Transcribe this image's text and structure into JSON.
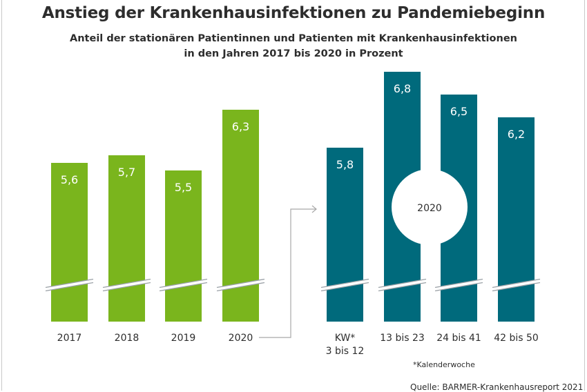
{
  "title": "Anstieg der Krankenhausinfektionen zu Pandemiebeginn",
  "subtitle_line1": "Anteil der stationären Patientinnen und Patienten mit Krankenhausinfektionen",
  "subtitle_line2": "in den Jahren 2017 bis 2020 in Prozent",
  "footnote": "*Kalenderwoche",
  "source": "Quelle: BARMER-Krankenhausreport 2021",
  "circle_label": "2020",
  "colors": {
    "green": "#7ab51d",
    "teal": "#006a7c",
    "text": "#2d2d2d"
  },
  "chart_data": [
    {
      "type": "bar",
      "categories": [
        "2017",
        "2018",
        "2019",
        "2020"
      ],
      "values": [
        5.6,
        5.7,
        5.5,
        6.3
      ],
      "value_labels": [
        "5,6",
        "5,7",
        "5,5",
        "6,3"
      ],
      "color": "#7ab51d"
    },
    {
      "type": "bar",
      "categories": [
        [
          "KW*",
          "3 bis 12"
        ],
        [
          "13 bis 23"
        ],
        [
          "24 bis 41"
        ],
        [
          "42 bis 50"
        ]
      ],
      "values": [
        5.8,
        6.8,
        6.5,
        6.2
      ],
      "value_labels": [
        "5,8",
        "6,8",
        "6,5",
        "6,2"
      ],
      "color": "#006a7c"
    }
  ]
}
